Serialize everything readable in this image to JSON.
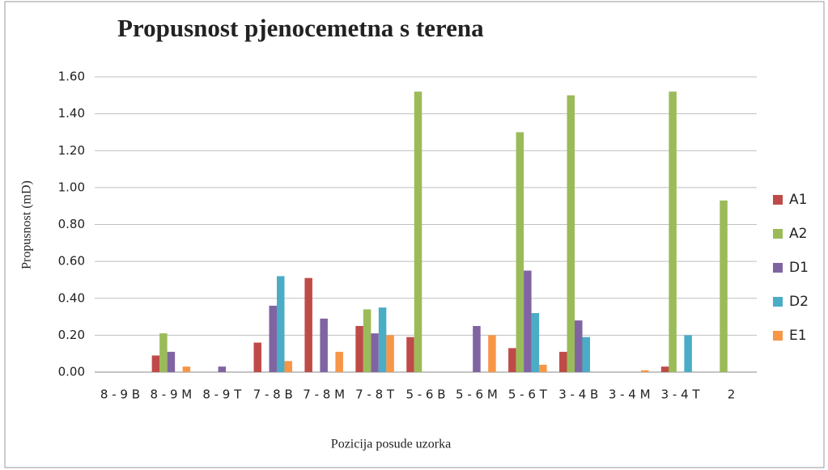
{
  "chart_data": {
    "type": "bar",
    "title": "Propusnost pjenocemetna s terena",
    "ylabel": "Propusnost (mD)",
    "xlabel": "Pozicija posude uzorka",
    "categories": [
      "8 - 9 B",
      "8 - 9 M",
      "8 - 9 T",
      "7 - 8 B",
      "7 - 8 M",
      "7 - 8 T",
      "5 - 6 B",
      "5 - 6 M",
      "5 - 6 T",
      "3 - 4 B",
      "3 - 4 M",
      "3 - 4 T",
      "2"
    ],
    "series": [
      {
        "name": "A1",
        "color": "#be4b48",
        "values": [
          null,
          0.09,
          null,
          0.16,
          0.51,
          0.25,
          0.19,
          null,
          0.13,
          0.11,
          null,
          0.03,
          null
        ]
      },
      {
        "name": "A2",
        "color": "#9bbb59",
        "values": [
          null,
          0.21,
          null,
          null,
          null,
          0.34,
          1.52,
          null,
          1.3,
          1.5,
          null,
          1.52,
          0.93
        ]
      },
      {
        "name": "D1",
        "color": "#8064a2",
        "values": [
          null,
          0.11,
          0.03,
          0.36,
          0.29,
          0.21,
          null,
          0.25,
          0.55,
          0.28,
          null,
          null,
          null
        ]
      },
      {
        "name": "D2",
        "color": "#4bacc6",
        "values": [
          null,
          null,
          null,
          0.52,
          null,
          0.35,
          null,
          null,
          0.32,
          0.19,
          null,
          0.2,
          null
        ]
      },
      {
        "name": "E1",
        "color": "#f79646",
        "values": [
          null,
          0.03,
          null,
          0.06,
          0.11,
          0.2,
          null,
          0.2,
          0.04,
          null,
          0.01,
          null,
          null
        ]
      }
    ],
    "ylim": [
      0,
      1.6
    ],
    "yticks": [
      {
        "value": 0,
        "label": "0.00"
      },
      {
        "value": 0.2,
        "label": "0.20"
      },
      {
        "value": 0.4,
        "label": "0.40"
      },
      {
        "value": 0.6,
        "label": "0.60"
      },
      {
        "value": 0.8,
        "label": "0.80"
      },
      {
        "value": 1.0,
        "label": "1.00"
      },
      {
        "value": 1.2,
        "label": "1.20"
      },
      {
        "value": 1.4,
        "label": "1.40"
      },
      {
        "value": 1.6,
        "label": "1.60"
      }
    ],
    "grid": true,
    "legend": "right"
  }
}
